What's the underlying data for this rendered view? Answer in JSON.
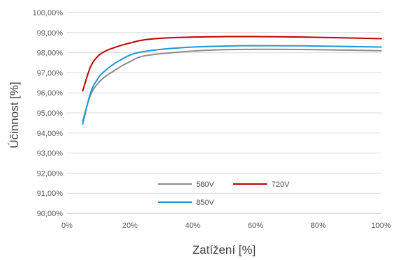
{
  "chart_data": {
    "type": "line",
    "xlabel": "Zatížení [%]",
    "ylabel": "Účinnost [%]",
    "xlim": [
      0,
      100
    ],
    "ylim": [
      90,
      100
    ],
    "x_ticks": [
      "0%",
      "20%",
      "40%",
      "60%",
      "80%",
      "100%"
    ],
    "y_ticks": [
      "90,00%",
      "91,00%",
      "92,00%",
      "93,00%",
      "94,00%",
      "95,00%",
      "96,00%",
      "97,00%",
      "98,00%",
      "99,00%",
      "100,00%"
    ],
    "grid": "horizontal",
    "legend_position": "inside-bottom-center",
    "series": [
      {
        "name": "580V",
        "color": "#8c8c8c",
        "x": [
          5,
          7.5,
          10,
          12.5,
          15,
          17.5,
          20,
          22.5,
          25,
          30,
          40,
          50,
          60,
          75,
          100
        ],
        "y": [
          94.6,
          95.9,
          96.5,
          96.85,
          97.1,
          97.35,
          97.55,
          97.75,
          97.85,
          97.95,
          98.08,
          98.15,
          98.17,
          98.16,
          98.1
        ]
      },
      {
        "name": "720V",
        "color": "#c00000",
        "x": [
          5,
          7.5,
          10,
          12.5,
          15,
          17.5,
          20,
          22.5,
          25,
          30,
          40,
          50,
          60,
          75,
          100
        ],
        "y": [
          96.1,
          97.3,
          97.85,
          98.1,
          98.25,
          98.38,
          98.48,
          98.58,
          98.65,
          98.72,
          98.78,
          98.8,
          98.8,
          98.78,
          98.7
        ]
      },
      {
        "name": "850V",
        "color": "#1a9ad6",
        "x": [
          5,
          7.5,
          10,
          12.5,
          15,
          17.5,
          20,
          22.5,
          25,
          30,
          40,
          50,
          60,
          75,
          100
        ],
        "y": [
          94.45,
          96.0,
          96.75,
          97.15,
          97.45,
          97.68,
          97.88,
          98.0,
          98.07,
          98.17,
          98.28,
          98.33,
          98.35,
          98.34,
          98.28
        ]
      }
    ]
  }
}
